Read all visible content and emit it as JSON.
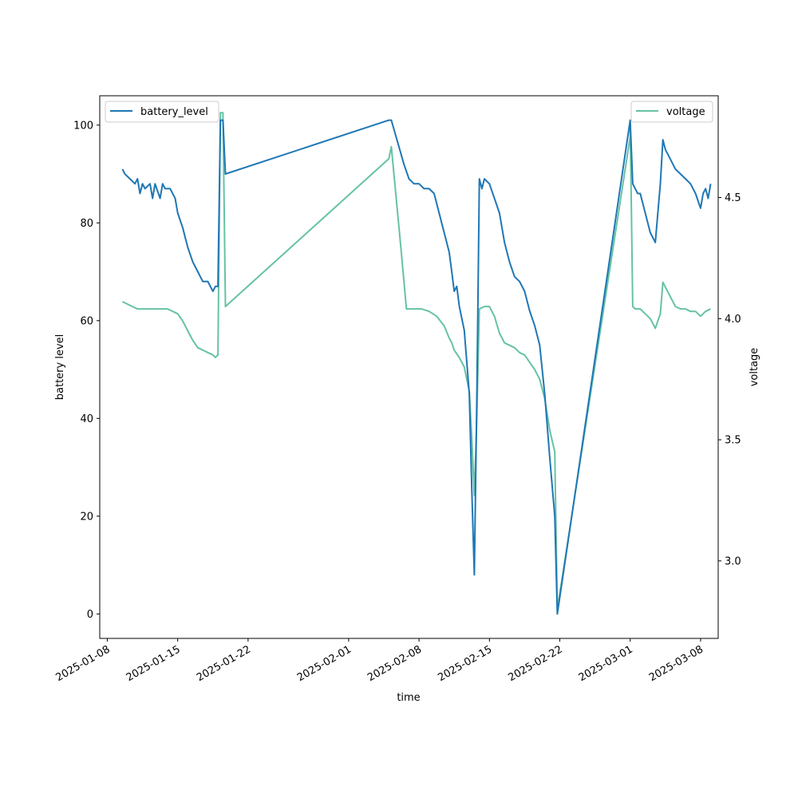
{
  "chart_data": {
    "type": "line",
    "title": "",
    "xlabel": "time",
    "ylabel": "battery level",
    "y2label": "voltage",
    "x_ticks": [
      "2025-01-08",
      "2025-01-15",
      "2025-01-22",
      "2025-02-01",
      "2025-02-08",
      "2025-02-15",
      "2025-02-22",
      "2025-03-01",
      "2025-03-08"
    ],
    "xlim": [
      "2025-01-07T06:00",
      "2025-03-09T18:00"
    ],
    "ylim": [
      -5,
      106
    ],
    "y_ticks": [
      0,
      20,
      40,
      60,
      80,
      100
    ],
    "y2lim": [
      2.68,
      4.92
    ],
    "y2_ticks": [
      "3.0",
      "3.5",
      "4.0",
      "4.5"
    ],
    "grid": false,
    "series": [
      {
        "name": "battery_level",
        "axis": "left",
        "color": "#1f77b4",
        "legend_position": "upper-left",
        "points": [
          [
            "2025-01-09T12:00",
            91
          ],
          [
            "2025-01-09T18:00",
            90
          ],
          [
            "2025-01-10T06:00",
            89
          ],
          [
            "2025-01-10T18:00",
            88
          ],
          [
            "2025-01-11T00:00",
            89
          ],
          [
            "2025-01-11T06:00",
            86
          ],
          [
            "2025-01-11T12:00",
            88
          ],
          [
            "2025-01-11T18:00",
            87
          ],
          [
            "2025-01-12T06:00",
            88
          ],
          [
            "2025-01-12T12:00",
            85
          ],
          [
            "2025-01-12T18:00",
            88
          ],
          [
            "2025-01-13T06:00",
            85
          ],
          [
            "2025-01-13T12:00",
            88
          ],
          [
            "2025-01-13T18:00",
            87
          ],
          [
            "2025-01-14T06:00",
            87
          ],
          [
            "2025-01-14T18:00",
            85
          ],
          [
            "2025-01-15T00:00",
            82
          ],
          [
            "2025-01-15T12:00",
            79
          ],
          [
            "2025-01-15T18:00",
            77
          ],
          [
            "2025-01-16T00:00",
            75
          ],
          [
            "2025-01-16T12:00",
            72
          ],
          [
            "2025-01-17T00:00",
            70
          ],
          [
            "2025-01-17T06:00",
            69
          ],
          [
            "2025-01-17T12:00",
            68
          ],
          [
            "2025-01-18T00:00",
            68
          ],
          [
            "2025-01-18T06:00",
            67
          ],
          [
            "2025-01-18T12:00",
            66
          ],
          [
            "2025-01-18T18:00",
            67
          ],
          [
            "2025-01-19T00:00",
            67
          ],
          [
            "2025-01-19T06:00",
            101
          ],
          [
            "2025-01-19T12:00",
            101
          ],
          [
            "2025-01-19T18:00",
            90
          ],
          [
            "2025-02-05T00:00",
            101
          ],
          [
            "2025-02-05T06:00",
            101
          ],
          [
            "2025-02-06T12:00",
            92
          ],
          [
            "2025-02-07T00:00",
            89
          ],
          [
            "2025-02-07T12:00",
            88
          ],
          [
            "2025-02-08T00:00",
            88
          ],
          [
            "2025-02-08T12:00",
            87
          ],
          [
            "2025-02-09T00:00",
            87
          ],
          [
            "2025-02-09T12:00",
            86
          ],
          [
            "2025-02-10T00:00",
            82
          ],
          [
            "2025-02-10T12:00",
            78
          ],
          [
            "2025-02-11T00:00",
            74
          ],
          [
            "2025-02-11T06:00",
            70
          ],
          [
            "2025-02-11T12:00",
            66
          ],
          [
            "2025-02-11T18:00",
            67
          ],
          [
            "2025-02-12T00:00",
            63
          ],
          [
            "2025-02-12T12:00",
            58
          ],
          [
            "2025-02-13T00:00",
            45
          ],
          [
            "2025-02-13T06:00",
            25
          ],
          [
            "2025-02-13T12:00",
            8
          ],
          [
            "2025-02-13T18:00",
            45
          ],
          [
            "2025-02-14T00:00",
            89
          ],
          [
            "2025-02-14T06:00",
            87
          ],
          [
            "2025-02-14T12:00",
            89
          ],
          [
            "2025-02-15T00:00",
            88
          ],
          [
            "2025-02-15T12:00",
            85
          ],
          [
            "2025-02-16T00:00",
            82
          ],
          [
            "2025-02-16T12:00",
            76
          ],
          [
            "2025-02-17T00:00",
            72
          ],
          [
            "2025-02-17T12:00",
            69
          ],
          [
            "2025-02-18T00:00",
            68
          ],
          [
            "2025-02-18T12:00",
            66
          ],
          [
            "2025-02-19T00:00",
            62
          ],
          [
            "2025-02-19T12:00",
            59
          ],
          [
            "2025-02-20T00:00",
            55
          ],
          [
            "2025-02-20T12:00",
            45
          ],
          [
            "2025-02-21T00:00",
            32
          ],
          [
            "2025-02-21T12:00",
            20
          ],
          [
            "2025-02-21T18:00",
            0
          ],
          [
            "2025-02-29T00:00",
            101
          ],
          [
            "2025-03-01T00:00",
            101
          ],
          [
            "2025-03-01T06:00",
            88
          ],
          [
            "2025-03-01T12:00",
            87
          ],
          [
            "2025-03-01T18:00",
            86
          ],
          [
            "2025-03-02T00:00",
            86
          ],
          [
            "2025-03-02T12:00",
            82
          ],
          [
            "2025-03-03T00:00",
            78
          ],
          [
            "2025-03-03T12:00",
            76
          ],
          [
            "2025-03-04T00:00",
            88
          ],
          [
            "2025-03-04T06:00",
            97
          ],
          [
            "2025-03-04T12:00",
            95
          ],
          [
            "2025-03-05T00:00",
            93
          ],
          [
            "2025-03-05T12:00",
            91
          ],
          [
            "2025-03-06T00:00",
            90
          ],
          [
            "2025-03-06T12:00",
            89
          ],
          [
            "2025-03-07T00:00",
            88
          ],
          [
            "2025-03-07T12:00",
            86
          ],
          [
            "2025-03-08T00:00",
            83
          ],
          [
            "2025-03-08T06:00",
            86
          ],
          [
            "2025-03-08T12:00",
            87
          ],
          [
            "2025-03-08T18:00",
            85
          ],
          [
            "2025-03-09T00:00",
            88
          ]
        ]
      },
      {
        "name": "voltage",
        "axis": "right",
        "color": "#66c2a5",
        "legend_position": "upper-right",
        "points": [
          [
            "2025-01-09T12:00",
            4.07
          ],
          [
            "2025-01-10T00:00",
            4.06
          ],
          [
            "2025-01-10T12:00",
            4.05
          ],
          [
            "2025-01-11T00:00",
            4.04
          ],
          [
            "2025-01-11T12:00",
            4.04
          ],
          [
            "2025-01-12T00:00",
            4.04
          ],
          [
            "2025-01-12T12:00",
            4.04
          ],
          [
            "2025-01-13T00:00",
            4.04
          ],
          [
            "2025-01-13T12:00",
            4.04
          ],
          [
            "2025-01-14T00:00",
            4.04
          ],
          [
            "2025-01-14T12:00",
            4.03
          ],
          [
            "2025-01-15T00:00",
            4.02
          ],
          [
            "2025-01-15T12:00",
            3.99
          ],
          [
            "2025-01-16T00:00",
            3.95
          ],
          [
            "2025-01-16T12:00",
            3.91
          ],
          [
            "2025-01-17T00:00",
            3.88
          ],
          [
            "2025-01-17T12:00",
            3.87
          ],
          [
            "2025-01-18T00:00",
            3.86
          ],
          [
            "2025-01-18T12:00",
            3.85
          ],
          [
            "2025-01-18T18:00",
            3.84
          ],
          [
            "2025-01-19T00:00",
            3.85
          ],
          [
            "2025-01-19T06:00",
            4.85
          ],
          [
            "2025-01-19T12:00",
            4.85
          ],
          [
            "2025-01-19T18:00",
            4.05
          ],
          [
            "2025-02-05T00:00",
            4.66
          ],
          [
            "2025-02-05T06:00",
            4.71
          ],
          [
            "2025-02-06T06:00",
            4.27
          ],
          [
            "2025-02-06T18:00",
            4.04
          ],
          [
            "2025-02-07T12:00",
            4.04
          ],
          [
            "2025-02-08T06:00",
            4.04
          ],
          [
            "2025-02-09T00:00",
            4.03
          ],
          [
            "2025-02-09T18:00",
            4.01
          ],
          [
            "2025-02-10T12:00",
            3.97
          ],
          [
            "2025-02-11T00:00",
            3.92
          ],
          [
            "2025-02-11T06:00",
            3.9
          ],
          [
            "2025-02-11T12:00",
            3.87
          ],
          [
            "2025-02-12T00:00",
            3.84
          ],
          [
            "2025-02-12T12:00",
            3.8
          ],
          [
            "2025-02-13T00:00",
            3.7
          ],
          [
            "2025-02-13T06:00",
            3.5
          ],
          [
            "2025-02-13T12:00",
            3.27
          ],
          [
            "2025-02-13T18:00",
            3.6
          ],
          [
            "2025-02-14T00:00",
            4.04
          ],
          [
            "2025-02-14T12:00",
            4.05
          ],
          [
            "2025-02-15T00:00",
            4.05
          ],
          [
            "2025-02-15T12:00",
            4.01
          ],
          [
            "2025-02-16T00:00",
            3.94
          ],
          [
            "2025-02-16T12:00",
            3.9
          ],
          [
            "2025-02-17T00:00",
            3.89
          ],
          [
            "2025-02-17T12:00",
            3.88
          ],
          [
            "2025-02-18T00:00",
            3.86
          ],
          [
            "2025-02-18T12:00",
            3.85
          ],
          [
            "2025-02-19T00:00",
            3.82
          ],
          [
            "2025-02-19T12:00",
            3.79
          ],
          [
            "2025-02-20T00:00",
            3.75
          ],
          [
            "2025-02-20T12:00",
            3.67
          ],
          [
            "2025-02-21T00:00",
            3.54
          ],
          [
            "2025-02-21T12:00",
            3.45
          ],
          [
            "2025-02-21T18:00",
            2.8
          ],
          [
            "2025-02-29T00:00",
            4.75
          ],
          [
            "2025-03-01T00:00",
            4.81
          ],
          [
            "2025-03-01T06:00",
            4.05
          ],
          [
            "2025-03-01T12:00",
            4.04
          ],
          [
            "2025-03-02T00:00",
            4.04
          ],
          [
            "2025-03-02T12:00",
            4.02
          ],
          [
            "2025-03-03T00:00",
            4.0
          ],
          [
            "2025-03-03T12:00",
            3.96
          ],
          [
            "2025-03-04T00:00",
            4.02
          ],
          [
            "2025-03-04T06:00",
            4.15
          ],
          [
            "2025-03-04T12:00",
            4.13
          ],
          [
            "2025-03-05T00:00",
            4.09
          ],
          [
            "2025-03-05T12:00",
            4.05
          ],
          [
            "2025-03-06T00:00",
            4.04
          ],
          [
            "2025-03-06T12:00",
            4.04
          ],
          [
            "2025-03-07T00:00",
            4.03
          ],
          [
            "2025-03-07T12:00",
            4.03
          ],
          [
            "2025-03-08T00:00",
            4.01
          ],
          [
            "2025-03-08T12:00",
            4.03
          ],
          [
            "2025-03-09T00:00",
            4.04
          ]
        ]
      }
    ]
  }
}
